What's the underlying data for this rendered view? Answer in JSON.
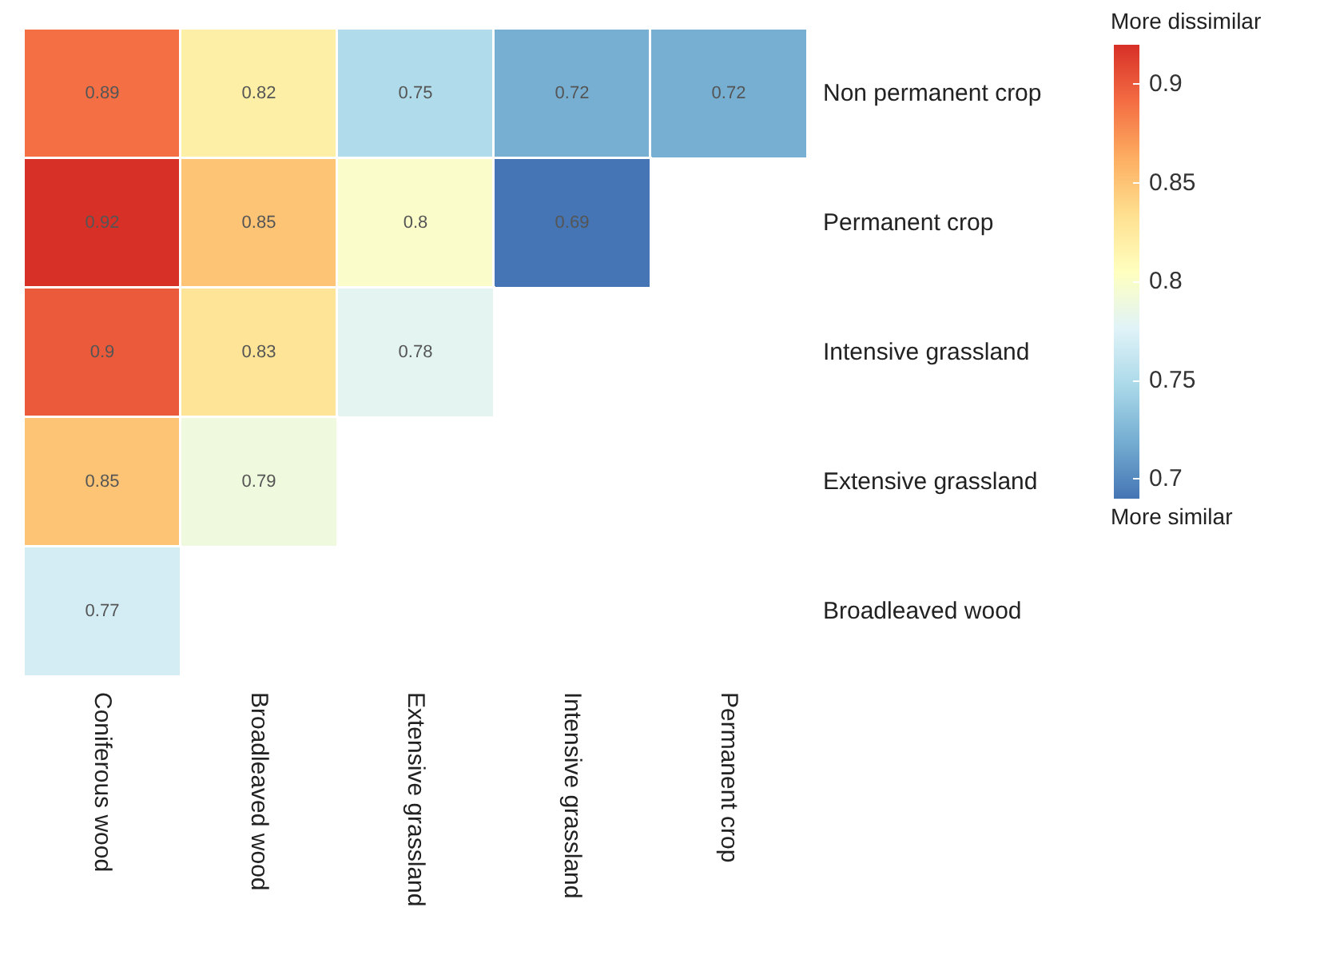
{
  "chart_data": {
    "type": "heatmap",
    "categories": [
      "Coniferous wood",
      "Broadleaved wood",
      "Extensive grassland",
      "Intensive grassland",
      "Permanent crop"
    ],
    "y_categories": [
      "Non permanent crop",
      "Permanent crop",
      "Intensive grassland",
      "Extensive grassland",
      "Broadleaved wood"
    ],
    "cells": [
      [
        0.89,
        0.82,
        0.75,
        0.72,
        0.72
      ],
      [
        0.92,
        0.85,
        0.8,
        0.69,
        null
      ],
      [
        0.9,
        0.83,
        0.78,
        null,
        null
      ],
      [
        0.85,
        0.79,
        null,
        null,
        null
      ],
      [
        0.77,
        null,
        null,
        null,
        null
      ]
    ],
    "data_labels": true,
    "clim": [
      0.69,
      0.92
    ],
    "cticks": [
      0.7,
      0.75,
      0.8,
      0.85,
      0.9
    ],
    "clabel": "More dissimilar",
    "annotations": [
      "More similar"
    ]
  }
}
